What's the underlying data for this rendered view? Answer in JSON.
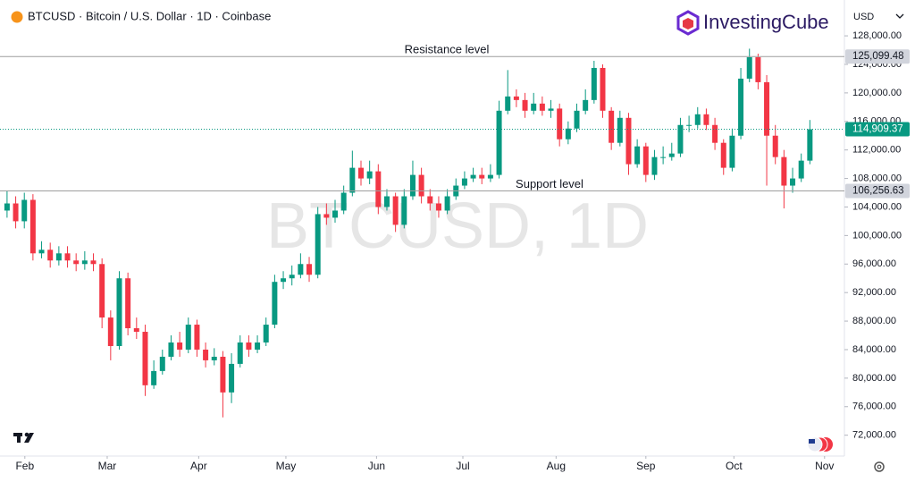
{
  "chart_data": {
    "type": "candlestick",
    "title": "BTCUSD · Bitcoin / U.S. Dollar · 1D · Coinbase",
    "watermark": "BTCUSD, 1D",
    "brand": "InvestingCube",
    "currency": "USD",
    "up_color": "#089981",
    "down_color": "#f23645",
    "open": [
      103500,
      104500,
      102000,
      105000,
      97500,
      98000,
      96500,
      97500,
      96500,
      96000,
      96500,
      96000,
      88500,
      84500,
      94000,
      87000,
      86500,
      79000,
      81000,
      83000,
      85000,
      84000,
      87500,
      84000,
      82500,
      83000,
      78000,
      82000,
      85000,
      84000,
      85000,
      87500,
      93500,
      94000,
      94500,
      96000,
      94500,
      103000,
      102500,
      103500,
      106000,
      109500,
      108000,
      109000,
      104000,
      105500,
      101500,
      105500,
      108500,
      105500,
      104500,
      103500,
      105500,
      107000,
      108000,
      108500,
      108000,
      108500,
      117500,
      119500,
      119000,
      117500,
      118500,
      117500,
      117800,
      113500,
      115000,
      117500,
      119000,
      123500,
      117500,
      113000,
      116500,
      110000,
      112500,
      108500,
      111000,
      111000,
      111500,
      115500,
      115500,
      117000,
      115500,
      113000,
      109500,
      114000,
      122000,
      125000,
      121500,
      114000,
      111000,
      107000,
      108000,
      110500
    ],
    "high": [
      106300,
      105500,
      106000,
      105800,
      99200,
      99000,
      98500,
      98500,
      97500,
      97800,
      97500,
      96800,
      89500,
      95000,
      94800,
      88500,
      87500,
      82500,
      84000,
      86000,
      86500,
      88500,
      88200,
      85000,
      84200,
      83800,
      83500,
      86000,
      86000,
      86000,
      88500,
      94500,
      95000,
      95800,
      97500,
      97000,
      104000,
      104500,
      105000,
      107000,
      111900,
      110500,
      110500,
      110000,
      106500,
      106000,
      106500,
      110500,
      109500,
      106500,
      105500,
      106500,
      108000,
      109000,
      109500,
      109500,
      110000,
      118900,
      123200,
      120500,
      120000,
      120000,
      119500,
      119000,
      118500,
      116000,
      118500,
      120500,
      124500,
      124000,
      118000,
      117500,
      117200,
      113500,
      113000,
      112000,
      112500,
      113000,
      116500,
      116800,
      118000,
      117800,
      116500,
      113500,
      115000,
      123500,
      126200,
      125500,
      122500,
      115500,
      112000,
      109500,
      111500,
      116200
    ],
    "low": [
      102500,
      101000,
      101000,
      96500,
      96800,
      95500,
      95800,
      95500,
      95000,
      95200,
      95000,
      87000,
      82500,
      84000,
      86000,
      85500,
      77500,
      78500,
      80500,
      82500,
      83000,
      83500,
      83000,
      81500,
      81800,
      74500,
      76500,
      81500,
      83000,
      83500,
      84500,
      87000,
      92500,
      93000,
      94000,
      93500,
      94000,
      101500,
      101800,
      103000,
      105500,
      107000,
      107200,
      103000,
      103500,
      100500,
      101000,
      105000,
      104500,
      103500,
      102500,
      103000,
      105000,
      106500,
      107500,
      107200,
      107500,
      108000,
      117000,
      118000,
      116500,
      117000,
      116800,
      116500,
      112500,
      112800,
      114500,
      117000,
      118500,
      116500,
      112000,
      112500,
      108500,
      109500,
      107500,
      107800,
      110000,
      110500,
      111000,
      114500,
      115000,
      114800,
      112000,
      108500,
      109000,
      113500,
      121500,
      120500,
      107000,
      110000,
      103800,
      106000,
      107500,
      110000
    ],
    "close": [
      104500,
      102000,
      105000,
      97500,
      98000,
      96500,
      97500,
      96500,
      96000,
      96500,
      96000,
      88500,
      84500,
      94000,
      87000,
      86500,
      79000,
      81000,
      83000,
      85000,
      84000,
      87500,
      84000,
      82500,
      83000,
      78000,
      82000,
      85000,
      84000,
      85000,
      87500,
      93500,
      94000,
      94500,
      96000,
      94500,
      103000,
      102500,
      103500,
      106000,
      109500,
      108000,
      109000,
      104000,
      105500,
      101500,
      105500,
      108500,
      105500,
      104500,
      103500,
      105500,
      107000,
      108000,
      108500,
      108000,
      108500,
      117500,
      119500,
      119000,
      117500,
      118500,
      117500,
      117800,
      113500,
      115000,
      117500,
      119000,
      123500,
      117500,
      113000,
      116500,
      110000,
      112500,
      108500,
      111000,
      111000,
      111500,
      115500,
      115500,
      117000,
      115500,
      113000,
      109500,
      114000,
      122000,
      125000,
      121500,
      114000,
      111000,
      107000,
      108000,
      110500,
      114900
    ],
    "xlim": [
      -0.3,
      97
    ],
    "xticks": [
      {
        "value": 2.06,
        "label": "Feb"
      },
      {
        "value": 11.6,
        "label": "Mar"
      },
      {
        "value": 22.2,
        "label": "Apr"
      },
      {
        "value": 32.3,
        "label": "May"
      },
      {
        "value": 42.8,
        "label": "Jun"
      },
      {
        "value": 52.8,
        "label": "Jul"
      },
      {
        "value": 63.6,
        "label": "Aug"
      },
      {
        "value": 74.0,
        "label": "Sep"
      },
      {
        "value": 84.2,
        "label": "Oct"
      },
      {
        "value": 94.7,
        "label": "Nov"
      }
    ],
    "ylim": [
      69700,
      132400
    ],
    "yticks": [
      {
        "value": 72000,
        "label": "72,000.00"
      },
      {
        "value": 76000,
        "label": "76,000.00"
      },
      {
        "value": 80000,
        "label": "80,000.00"
      },
      {
        "value": 84000,
        "label": "84,000.00"
      },
      {
        "value": 88000,
        "label": "88,000.00"
      },
      {
        "value": 92000,
        "label": "92,000.00"
      },
      {
        "value": 96000,
        "label": "96,000.00"
      },
      {
        "value": 100000,
        "label": "100,000.00"
      },
      {
        "value": 104000,
        "label": "104,000.00"
      },
      {
        "value": 108000,
        "label": "108,000.00"
      },
      {
        "value": 112000,
        "label": "112,000.00"
      },
      {
        "value": 116000,
        "label": "116,000.00"
      },
      {
        "value": 120000,
        "label": "120,000.00"
      },
      {
        "value": 124000,
        "label": "124,000.00"
      },
      {
        "value": 128000,
        "label": "128,000.00"
      }
    ],
    "levels": [
      {
        "name": "Resistance level",
        "value": 125099.48,
        "label": "125,099.48",
        "color": "#9e9e9e"
      },
      {
        "value": 114909.37,
        "label": "114,909.37",
        "color": "#089981"
      },
      {
        "name": "Support level",
        "value": 106256.63,
        "label": "106,256.63",
        "color": "#9e9e9e"
      }
    ]
  }
}
